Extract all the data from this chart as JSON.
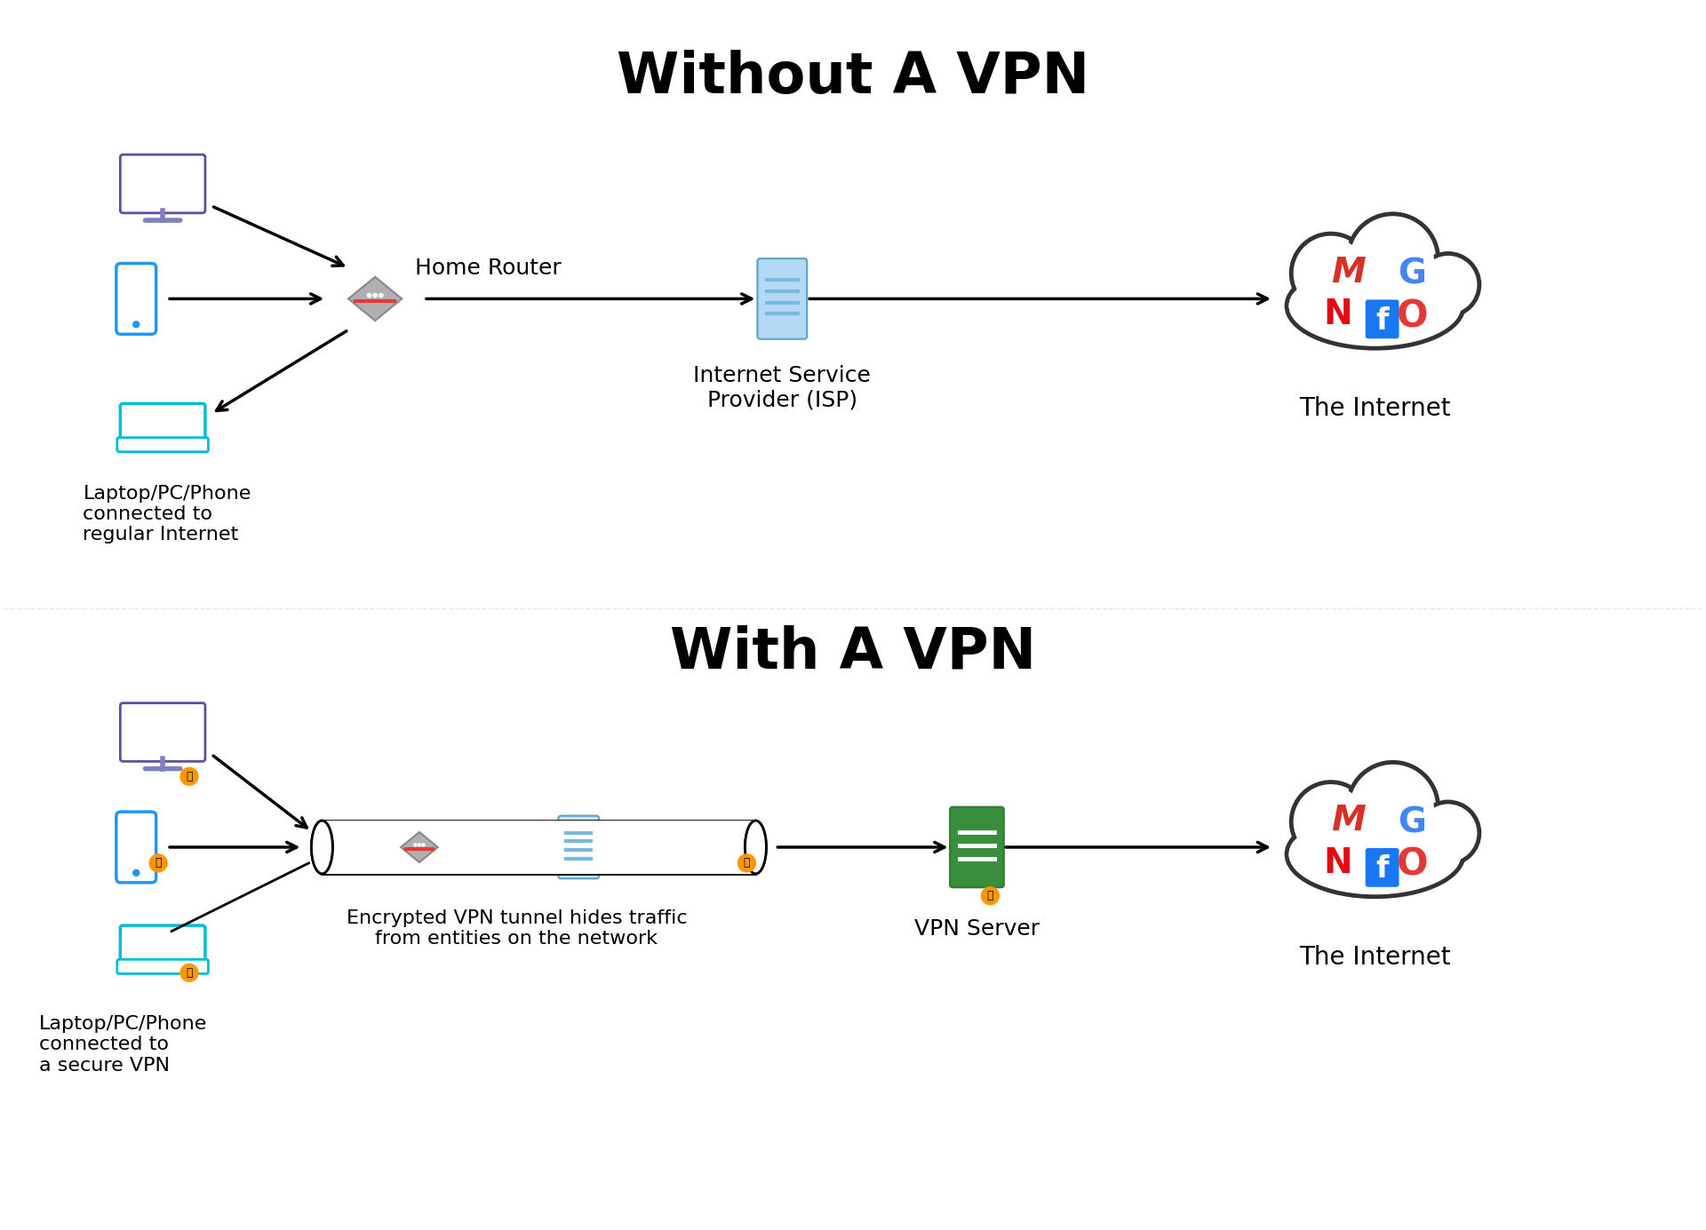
{
  "title_top": "Without A VPN",
  "title_bottom": "With A VPN",
  "label_devices_top": "Laptop/PC/Phone\nconnected to\nregular Internet",
  "label_devices_bottom": "Laptop/PC/Phone\nconnected to\na secure VPN",
  "label_router": "Home Router",
  "label_isp": "Internet Service\nProvider (ISP)",
  "label_internet": "The Internet",
  "label_vpn_tunnel": "Encrypted VPN tunnel hides traffic\nfrom entities on the network",
  "label_vpn_server": "VPN Server",
  "bg_color": "#ffffff",
  "text_color": "#000000",
  "arrow_color": "#000000",
  "monitor_fill": "#ffffff",
  "monitor_border": "#5b4fa8",
  "monitor_stand": "#8080c0",
  "phone_fill": "#ffffff",
  "phone_border": "#2196F3",
  "laptop_fill": "#ffffff",
  "laptop_border": "#00BCD4",
  "router_color": "#999999",
  "router_stripe": "#e53935",
  "isp_fill": "#b3d9f5",
  "isp_stripe": "#90c4e8",
  "cloud_fill": "#ffffff",
  "cloud_border": "#333333",
  "vpn_server_fill": "#388e3c",
  "vpn_server_stripe": "#ffffff",
  "tunnel_fill": "#ffffff",
  "tunnel_border": "#000000",
  "lock_color": "#ff9800",
  "gmail_red": "#d93025",
  "google_colors": [
    "#4285F4",
    "#EA4335",
    "#FBBC05",
    "#34A853"
  ],
  "netflix_red": "#e50914",
  "facebook_blue": "#1877f2",
  "messenger_red": "#e53935"
}
